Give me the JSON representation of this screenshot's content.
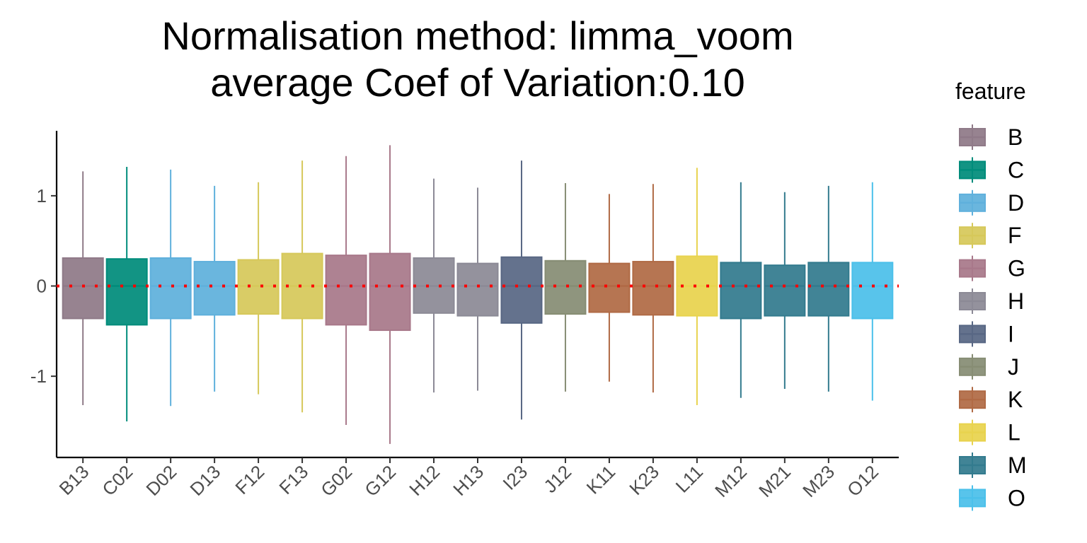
{
  "chart_data": {
    "type": "boxplot",
    "title_lines": [
      "Normalisation method: limma_voom",
      "average Coef of Variation:0.10"
    ],
    "xlabel": "",
    "ylabel": "",
    "ylim": [
      -1.9,
      1.72
    ],
    "yticks": [
      -1,
      0,
      1
    ],
    "ytick_labels": [
      "-1",
      "0",
      "1"
    ],
    "reference_line": {
      "y": 0,
      "color": "#ff0000",
      "style": "dotted"
    },
    "grid": false,
    "legend": {
      "title": "feature",
      "placement": "right",
      "entries": [
        {
          "label": "B",
          "color": "#8f7a88"
        },
        {
          "label": "C",
          "color": "#008c7b"
        },
        {
          "label": "D",
          "color": "#5fb0dc"
        },
        {
          "label": "F",
          "color": "#d6c85a"
        },
        {
          "label": "G",
          "color": "#a8788a"
        },
        {
          "label": "H",
          "color": "#8c8a96"
        },
        {
          "label": "I",
          "color": "#586784"
        },
        {
          "label": "J",
          "color": "#878d74"
        },
        {
          "label": "K",
          "color": "#b06a45"
        },
        {
          "label": "L",
          "color": "#e8d34e"
        },
        {
          "label": "M",
          "color": "#337b8e"
        },
        {
          "label": "O",
          "color": "#4bc0ea"
        }
      ]
    },
    "boxes": [
      {
        "category": "B13",
        "feature": "B",
        "whisker_low": -1.32,
        "q1": -0.36,
        "median": 0.0,
        "q3": 0.31,
        "whisker_high": 1.27
      },
      {
        "category": "C02",
        "feature": "C",
        "whisker_low": -1.5,
        "q1": -0.43,
        "median": 0.0,
        "q3": 0.3,
        "whisker_high": 1.32
      },
      {
        "category": "D02",
        "feature": "D",
        "whisker_low": -1.33,
        "q1": -0.36,
        "median": 0.0,
        "q3": 0.31,
        "whisker_high": 1.29
      },
      {
        "category": "D13",
        "feature": "D",
        "whisker_low": -1.17,
        "q1": -0.32,
        "median": 0.0,
        "q3": 0.27,
        "whisker_high": 1.11
      },
      {
        "category": "F12",
        "feature": "F",
        "whisker_low": -1.2,
        "q1": -0.31,
        "median": 0.0,
        "q3": 0.29,
        "whisker_high": 1.15
      },
      {
        "category": "F13",
        "feature": "F",
        "whisker_low": -1.4,
        "q1": -0.36,
        "median": 0.0,
        "q3": 0.36,
        "whisker_high": 1.39
      },
      {
        "category": "G02",
        "feature": "G",
        "whisker_low": -1.54,
        "q1": -0.43,
        "median": 0.0,
        "q3": 0.34,
        "whisker_high": 1.44
      },
      {
        "category": "G12",
        "feature": "G",
        "whisker_low": -1.75,
        "q1": -0.49,
        "median": 0.0,
        "q3": 0.36,
        "whisker_high": 1.56
      },
      {
        "category": "H12",
        "feature": "H",
        "whisker_low": -1.18,
        "q1": -0.3,
        "median": 0.0,
        "q3": 0.31,
        "whisker_high": 1.19
      },
      {
        "category": "H13",
        "feature": "H",
        "whisker_low": -1.16,
        "q1": -0.33,
        "median": 0.0,
        "q3": 0.25,
        "whisker_high": 1.09
      },
      {
        "category": "I23",
        "feature": "I",
        "whisker_low": -1.48,
        "q1": -0.41,
        "median": 0.0,
        "q3": 0.32,
        "whisker_high": 1.39
      },
      {
        "category": "J12",
        "feature": "J",
        "whisker_low": -1.17,
        "q1": -0.31,
        "median": 0.0,
        "q3": 0.28,
        "whisker_high": 1.14
      },
      {
        "category": "K11",
        "feature": "K",
        "whisker_low": -1.06,
        "q1": -0.29,
        "median": 0.0,
        "q3": 0.25,
        "whisker_high": 1.02
      },
      {
        "category": "K23",
        "feature": "K",
        "whisker_low": -1.18,
        "q1": -0.32,
        "median": 0.0,
        "q3": 0.27,
        "whisker_high": 1.13
      },
      {
        "category": "L11",
        "feature": "L",
        "whisker_low": -1.32,
        "q1": -0.33,
        "median": 0.0,
        "q3": 0.33,
        "whisker_high": 1.31
      },
      {
        "category": "M12",
        "feature": "M",
        "whisker_low": -1.24,
        "q1": -0.36,
        "median": 0.0,
        "q3": 0.26,
        "whisker_high": 1.15
      },
      {
        "category": "M21",
        "feature": "M",
        "whisker_low": -1.14,
        "q1": -0.33,
        "median": 0.0,
        "q3": 0.23,
        "whisker_high": 1.04
      },
      {
        "category": "M23",
        "feature": "M",
        "whisker_low": -1.17,
        "q1": -0.33,
        "median": 0.0,
        "q3": 0.26,
        "whisker_high": 1.11
      },
      {
        "category": "O12",
        "feature": "O",
        "whisker_low": -1.27,
        "q1": -0.36,
        "median": 0.0,
        "q3": 0.26,
        "whisker_high": 1.15
      }
    ]
  }
}
